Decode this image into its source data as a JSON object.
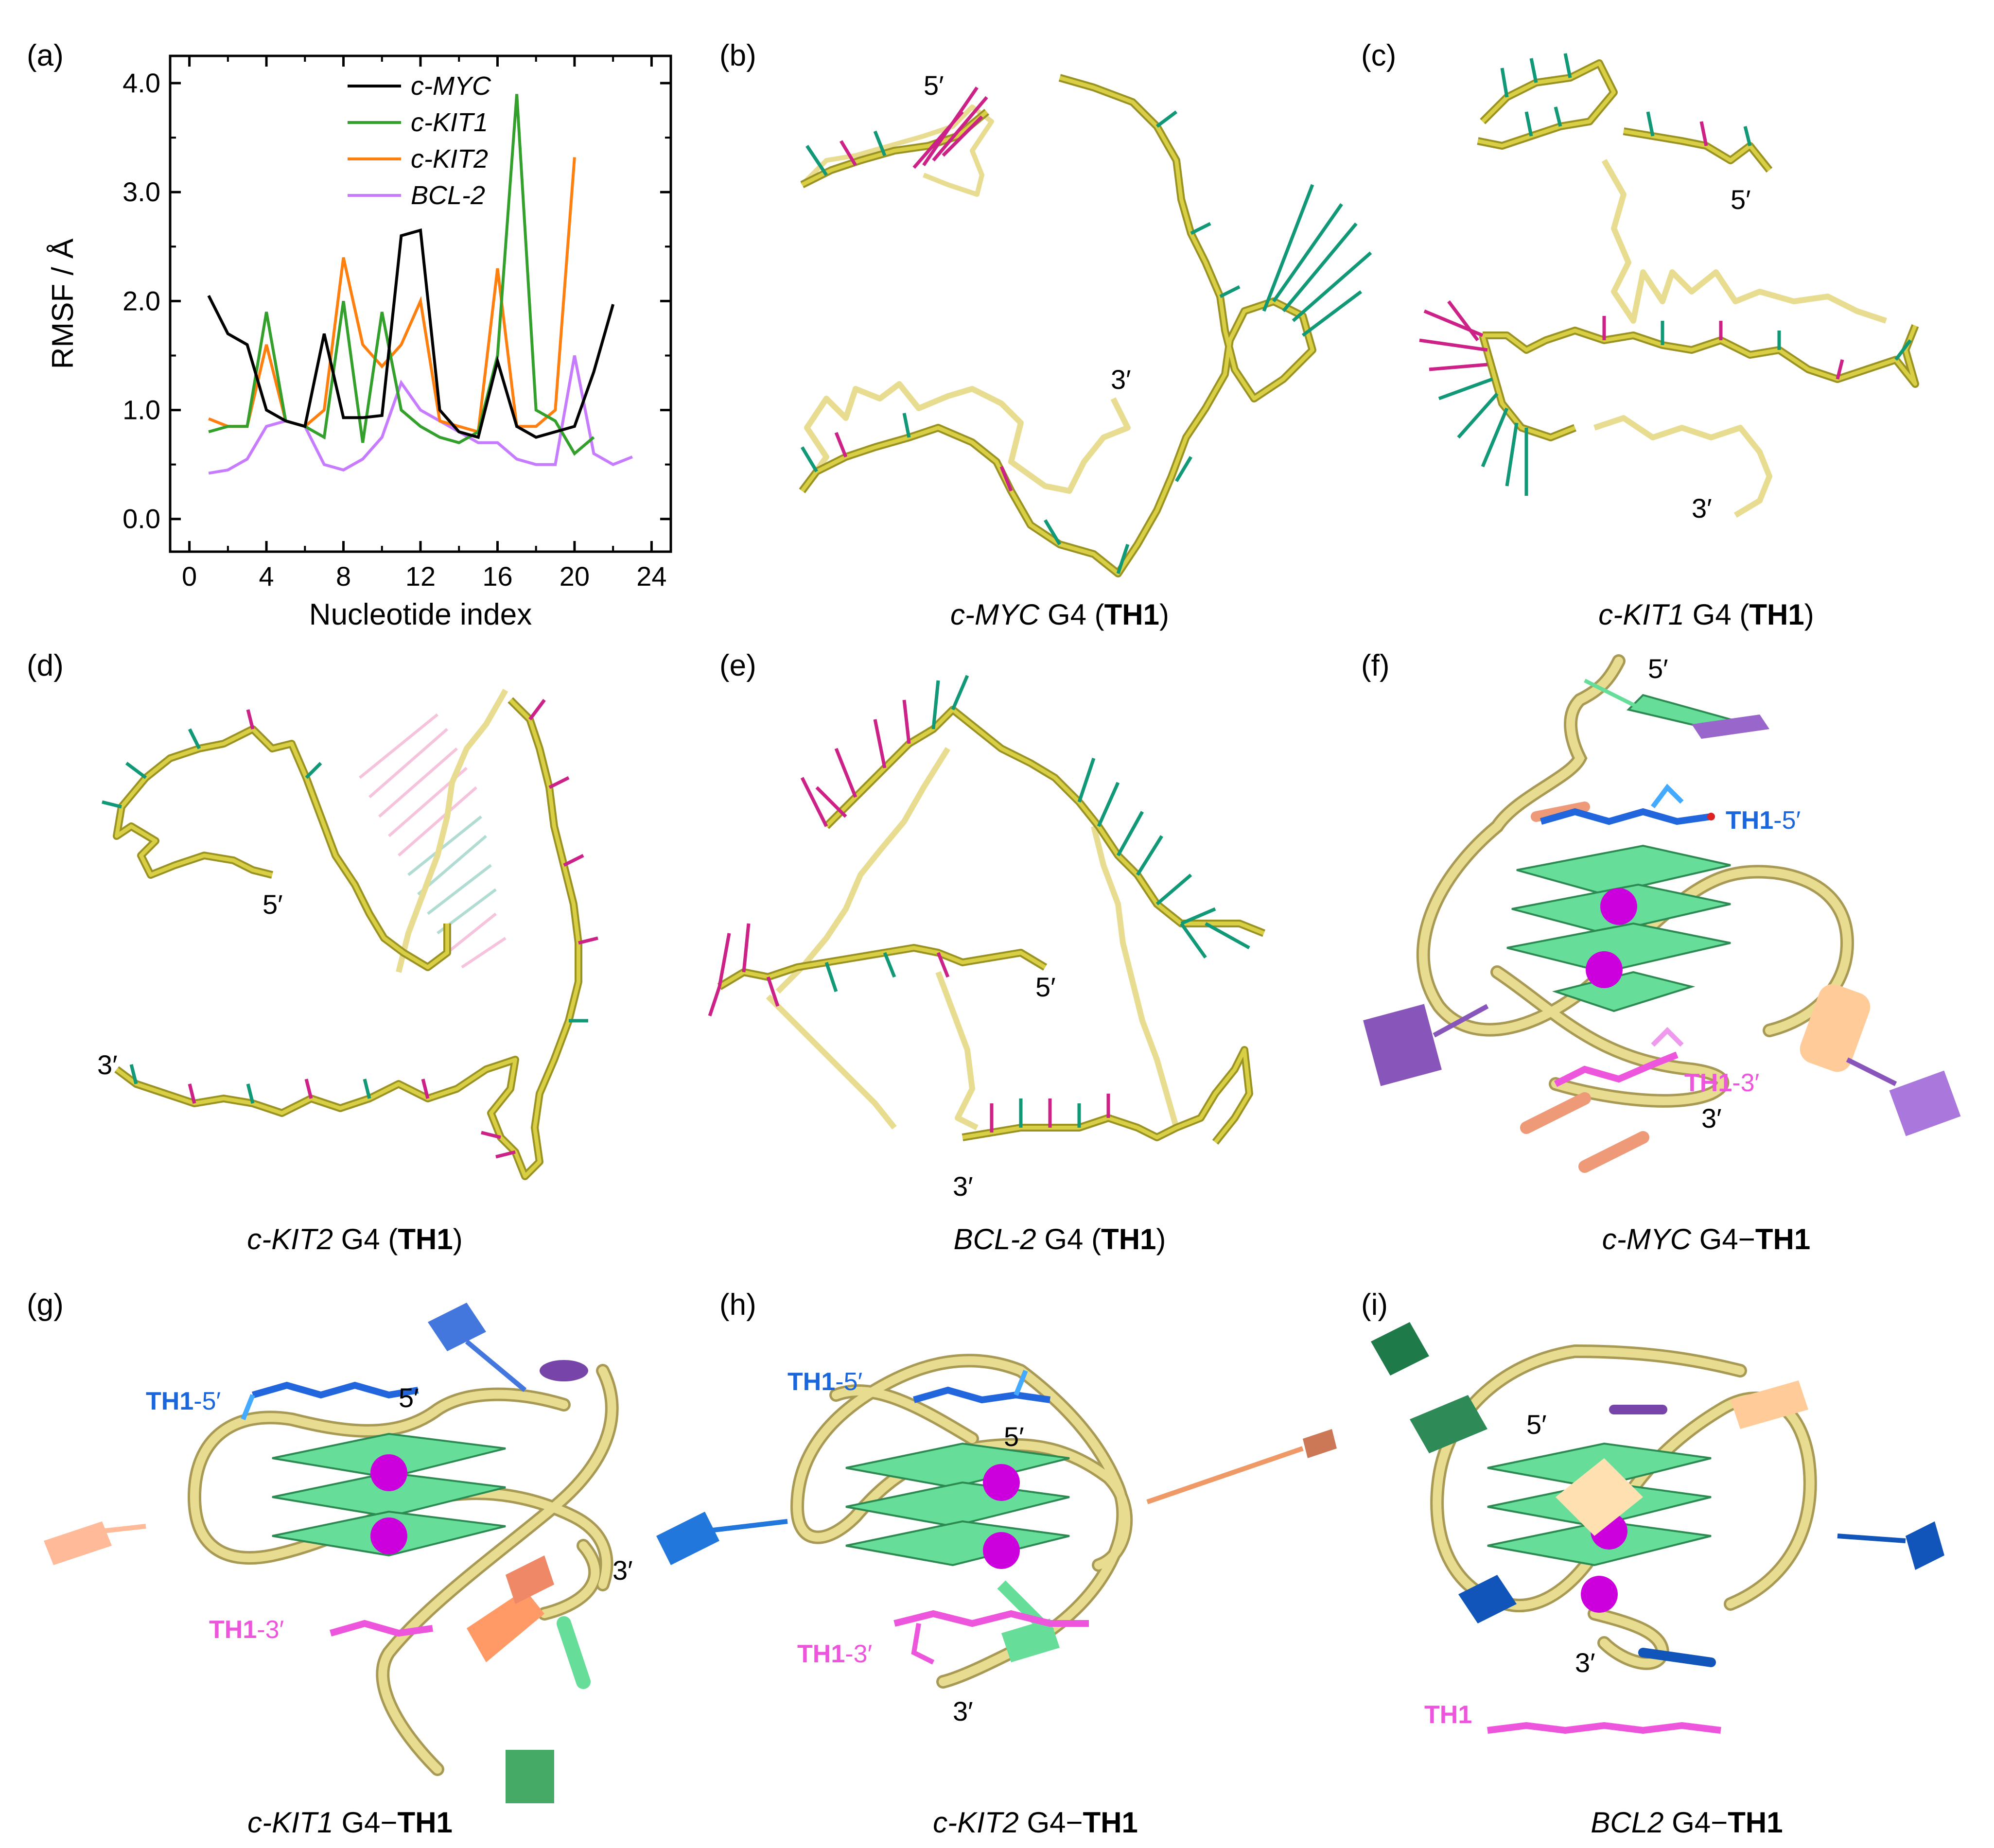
{
  "panels": {
    "a": {
      "letter": "(a)"
    },
    "b": {
      "letter": "(b)",
      "caption_gene": "c-MYC",
      "caption_mid": " G4 (",
      "caption_bold": "TH1",
      "caption_end": ")",
      "end5": "5′",
      "end3": "3′"
    },
    "c": {
      "letter": "(c)",
      "caption_gene": "c-KIT1",
      "caption_mid": " G4 (",
      "caption_bold": "TH1",
      "caption_end": ")",
      "end5": "5′",
      "end3": "3′"
    },
    "d": {
      "letter": "(d)",
      "caption_gene": "c-KIT2",
      "caption_mid": " G4 (",
      "caption_bold": "TH1",
      "caption_end": ")",
      "end5": "5′",
      "end3": "3′"
    },
    "e": {
      "letter": "(e)",
      "caption_gene": "BCL-2",
      "caption_mid": " G4 (",
      "caption_bold": "TH1",
      "caption_end": ")",
      "end5": "5′",
      "end3": "3′"
    },
    "f": {
      "letter": "(f)",
      "caption_gene": "c-MYC",
      "caption_mid": " G4−",
      "caption_bold": "TH1",
      "end5": "5′",
      "end3": "3′",
      "lig_a_bold": "TH1",
      "lig_a_rest": "-5′",
      "lig_b_bold": "TH1",
      "lig_b_rest": "-3′"
    },
    "g": {
      "letter": "(g)",
      "caption_gene": "c-KIT1",
      "caption_mid": " G4−",
      "caption_bold": "TH1",
      "end5": "5′",
      "end3": "3′",
      "lig_a_bold": "TH1",
      "lig_a_rest": "-5′",
      "lig_b_bold": "TH1",
      "lig_b_rest": "-3′"
    },
    "h": {
      "letter": "(h)",
      "caption_gene": "c-KIT2",
      "caption_mid": " G4−",
      "caption_bold": "TH1",
      "end5": "5′",
      "end3": "3′",
      "lig_a_bold": "TH1",
      "lig_a_rest": "-5′",
      "lig_b_bold": "TH1",
      "lig_b_rest": "-3′"
    },
    "i": {
      "letter": "(i)",
      "caption_gene": "BCL2",
      "caption_mid": " G4−",
      "caption_bold": "TH1",
      "end5": "5′",
      "end3": "3′",
      "lig_a_bold": "TH1"
    }
  },
  "colors": {
    "c-MYC": "#000000",
    "c-KIT1": "#33a02c",
    "c-KIT2": "#ff7f0e",
    "BCL-2": "#c77cff",
    "backbone": "#c9c23c",
    "arrow_green": "#119977",
    "arrow_magenta": "#cc2288",
    "guanine": "#66dd99",
    "ion": "#cc00dd",
    "tube": "#e8dc90",
    "lig_blue": "#2266dd",
    "lig_pink": "#ee55dd"
  },
  "chart_data": {
    "type": "line",
    "xlabel": "Nucleotide index",
    "ylabel": "RMSF / Å",
    "xlim": [
      -1,
      25
    ],
    "ylim": [
      -0.3,
      4.25
    ],
    "xticks": [
      0,
      4,
      8,
      12,
      16,
      20,
      24
    ],
    "yticks": [
      0.0,
      1.0,
      2.0,
      3.0,
      4.0
    ],
    "ytick_labels": [
      "0.0",
      "1.0",
      "2.0",
      "3.0",
      "4.0"
    ],
    "legend": "top-center",
    "grid": false,
    "series": [
      {
        "name": "c-MYC",
        "x": [
          1,
          2,
          3,
          4,
          5,
          6,
          7,
          8,
          9,
          10,
          11,
          12,
          13,
          14,
          15,
          16,
          17,
          18,
          19,
          20,
          21,
          22
        ],
        "values": [
          2.05,
          1.7,
          1.6,
          1.0,
          0.9,
          0.85,
          1.7,
          0.93,
          0.93,
          0.95,
          2.6,
          2.65,
          1.0,
          0.8,
          0.75,
          1.45,
          0.85,
          0.75,
          0.8,
          0.85,
          1.35,
          1.97
        ]
      },
      {
        "name": "c-KIT1",
        "x": [
          1,
          2,
          3,
          4,
          5,
          6,
          7,
          8,
          9,
          10,
          11,
          12,
          13,
          14,
          15,
          16,
          17,
          18,
          19,
          20,
          21
        ],
        "values": [
          0.8,
          0.85,
          0.85,
          1.9,
          0.9,
          0.85,
          0.75,
          2.0,
          0.7,
          1.9,
          1.0,
          0.85,
          0.75,
          0.7,
          0.8,
          1.5,
          3.9,
          1.0,
          0.9,
          0.6,
          0.75
        ]
      },
      {
        "name": "c-KIT2",
        "x": [
          1,
          2,
          3,
          4,
          5,
          6,
          7,
          8,
          9,
          10,
          11,
          12,
          13,
          14,
          15,
          16,
          17,
          18,
          19,
          20
        ],
        "values": [
          0.92,
          0.85,
          0.85,
          1.6,
          0.9,
          0.85,
          1.0,
          2.4,
          1.6,
          1.4,
          1.6,
          2.0,
          0.9,
          0.85,
          0.8,
          2.3,
          0.85,
          0.85,
          1.0,
          3.32
        ]
      },
      {
        "name": "BCL-2",
        "x": [
          1,
          2,
          3,
          4,
          5,
          6,
          7,
          8,
          9,
          10,
          11,
          12,
          13,
          14,
          15,
          16,
          17,
          18,
          19,
          20,
          21,
          22,
          23
        ],
        "values": [
          0.42,
          0.45,
          0.55,
          0.85,
          0.9,
          0.85,
          0.5,
          0.45,
          0.55,
          0.75,
          1.25,
          1.0,
          0.9,
          0.8,
          0.7,
          0.7,
          0.55,
          0.5,
          0.5,
          1.5,
          0.6,
          0.5,
          0.57
        ]
      }
    ]
  }
}
